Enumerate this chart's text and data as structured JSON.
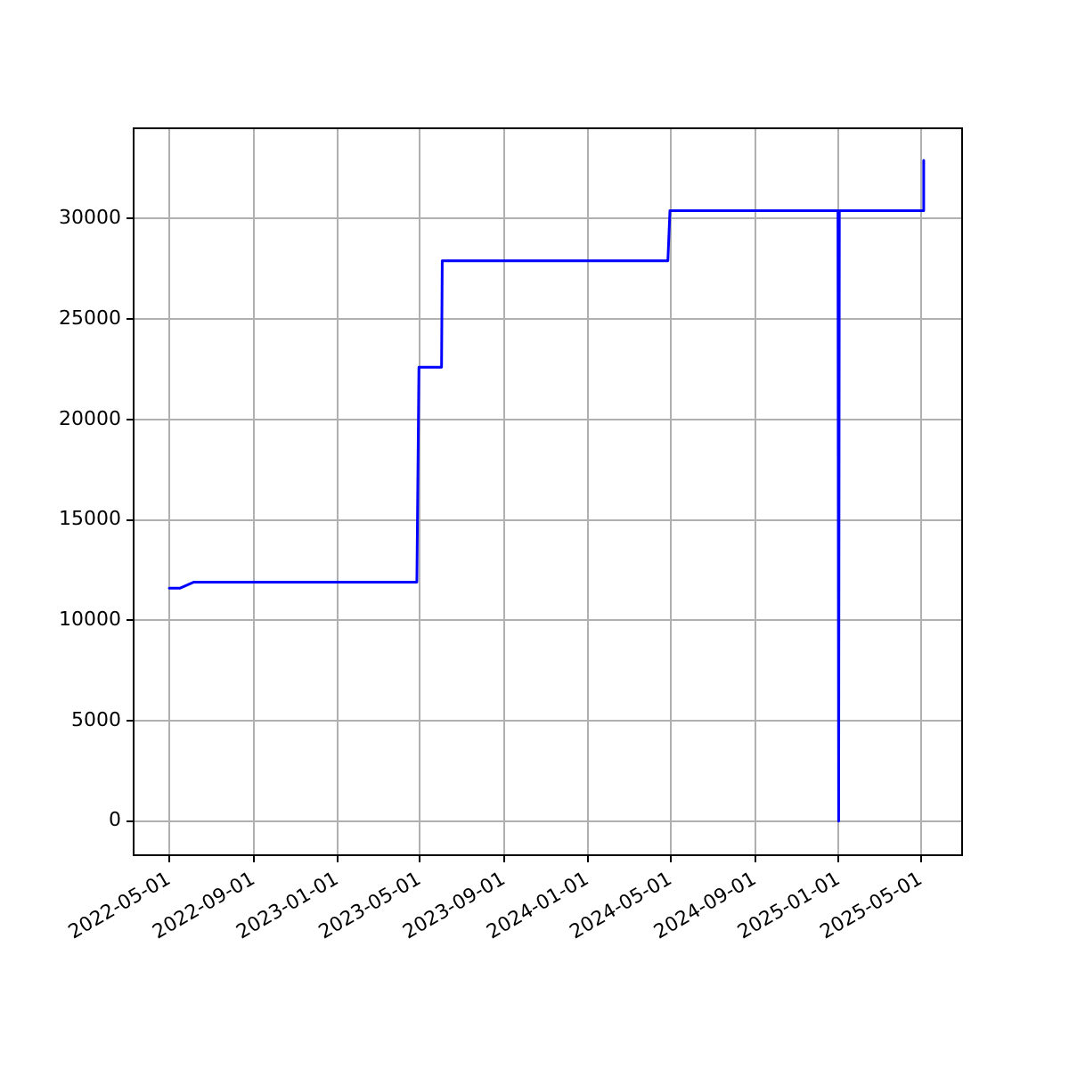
{
  "chart_data": {
    "type": "line",
    "x": [
      "2022-05-01",
      "2022-05-17",
      "2022-06-06",
      "2023-04-27",
      "2023-04-30",
      "2023-06-02",
      "2023-06-03",
      "2024-04-27",
      "2024-04-30",
      "2024-12-31",
      "2025-01-01",
      "2025-01-02",
      "2025-05-04",
      "2025-05-05"
    ],
    "series": [
      {
        "color": "#0000ff",
        "values": [
          11600,
          11600,
          11900,
          11900,
          22600,
          22600,
          27900,
          27900,
          30400,
          30400,
          0,
          30400,
          30400,
          32900
        ]
      }
    ],
    "xlim": [
      "2022-03-10",
      "2025-06-30"
    ],
    "xticks": [
      "2022-05-01",
      "2022-09-01",
      "2023-01-01",
      "2023-05-01",
      "2023-09-01",
      "2024-01-01",
      "2024-05-01",
      "2024-09-01",
      "2025-01-01",
      "2025-05-01"
    ],
    "ylim": [
      -1700,
      34500
    ],
    "yticks": [
      0,
      5000,
      10000,
      15000,
      20000,
      25000,
      30000
    ],
    "grid": true,
    "legend": false,
    "marker": "none",
    "line_style": "solid"
  }
}
